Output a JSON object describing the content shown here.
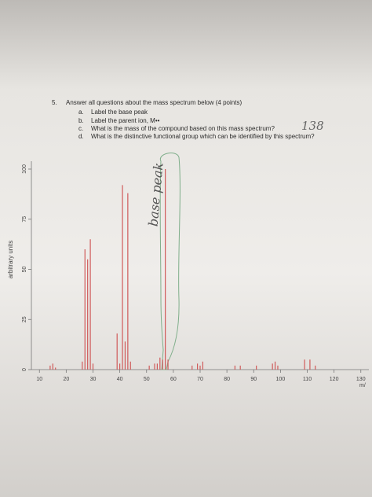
{
  "question": {
    "number": "5.",
    "prompt": "Answer all questions about the mass spectrum below (4 points)",
    "items": [
      {
        "letter": "a.",
        "text": "Label the base peak"
      },
      {
        "letter": "b.",
        "text": "Label the parent ion, M••"
      },
      {
        "letter": "c.",
        "text": "What is the mass of the compound based on this mass spectrum?",
        "answer": "138"
      },
      {
        "letter": "d.",
        "text": "What is the distinctive functional group which can be identified by this spectrum?"
      }
    ]
  },
  "chart_data": {
    "type": "stem",
    "color": "#d05a5a",
    "y_label": "arbitrary units",
    "x_label": "m/",
    "annotations": [
      "base peak"
    ],
    "x": [
      14,
      15,
      16,
      26,
      27,
      28,
      29,
      30,
      39,
      40,
      41,
      42,
      43,
      44,
      51,
      53,
      54,
      55,
      56,
      57,
      58,
      67,
      69,
      70,
      71,
      83,
      85,
      91,
      97,
      98,
      99,
      109,
      111,
      113
    ],
    "values": [
      2,
      3,
      1,
      4,
      60,
      55,
      65,
      3,
      18,
      3,
      92,
      14,
      88,
      4,
      2,
      3,
      3,
      6,
      5,
      100,
      5,
      2,
      3,
      2,
      4,
      2,
      2,
      2,
      3,
      4,
      2,
      5,
      5,
      2
    ],
    "xlim": [
      7,
      133
    ],
    "ylim": [
      0,
      100
    ],
    "xticks": [
      10,
      20,
      30,
      40,
      50,
      60,
      70,
      80,
      90,
      100,
      110,
      120,
      130
    ],
    "yticks": [
      0,
      25,
      50,
      75,
      100
    ]
  }
}
